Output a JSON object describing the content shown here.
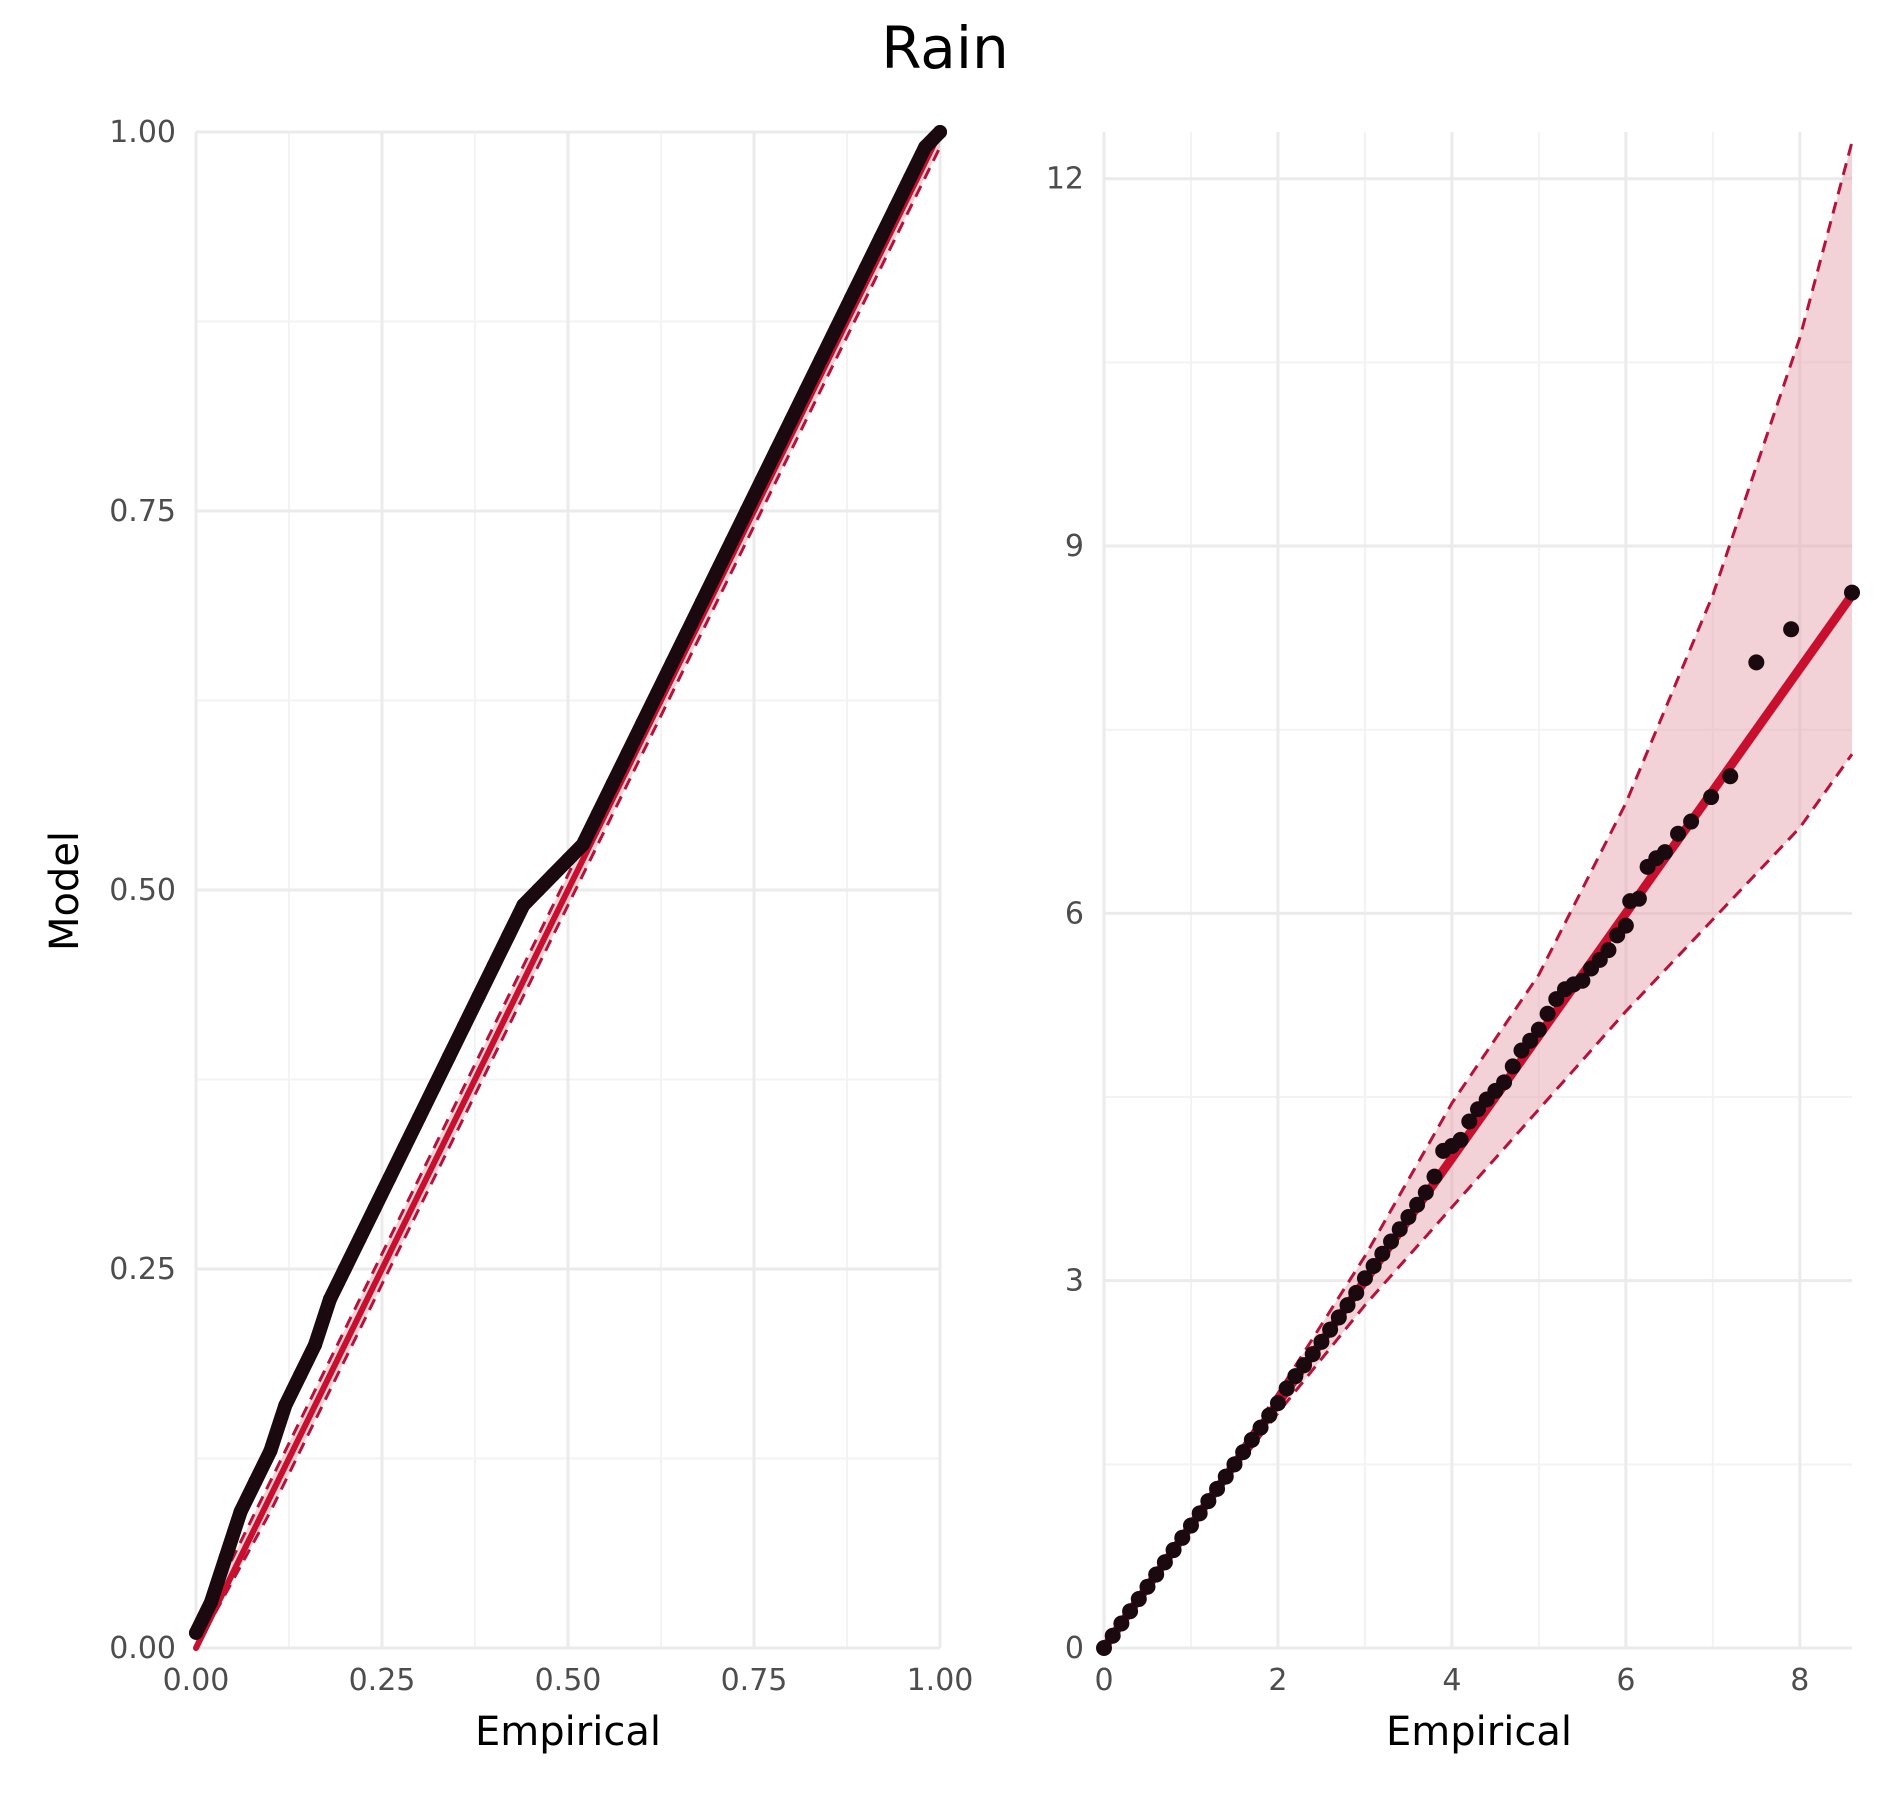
{
  "title": "Rain",
  "colors": {
    "points": "#1a0a0f",
    "reference_line": "#c8102e",
    "band_fill": "#e5a3b0",
    "band_border": "#b5133a",
    "grid_major": "#ebebeb",
    "grid_minor": "#f3f3f3",
    "tick_text": "#4d4d4d"
  },
  "chart_data": [
    {
      "type": "scatter",
      "panel": "left",
      "xlabel": "Empirical",
      "ylabel": "Model",
      "xlim": [
        0,
        1
      ],
      "ylim": [
        0,
        1
      ],
      "x_ticks": [
        "0.00",
        "0.25",
        "0.50",
        "0.75",
        "1.00"
      ],
      "y_ticks": [
        "0.00",
        "0.25",
        "0.50",
        "0.75",
        "1.00"
      ],
      "grid": true,
      "reference_line": [
        [
          0,
          0
        ],
        [
          1,
          1
        ]
      ],
      "band_lower": [
        [
          0,
          0
        ],
        [
          0.1,
          0.09
        ],
        [
          0.2,
          0.19
        ],
        [
          0.3,
          0.29
        ],
        [
          0.4,
          0.39
        ],
        [
          0.5,
          0.49
        ],
        [
          0.6,
          0.59
        ],
        [
          0.7,
          0.69
        ],
        [
          0.8,
          0.79
        ],
        [
          0.9,
          0.89
        ],
        [
          1.0,
          0.99
        ]
      ],
      "band_upper": [
        [
          0,
          0.01
        ],
        [
          0.1,
          0.11
        ],
        [
          0.2,
          0.21
        ],
        [
          0.3,
          0.31
        ],
        [
          0.4,
          0.41
        ],
        [
          0.5,
          0.51
        ],
        [
          0.6,
          0.61
        ],
        [
          0.7,
          0.71
        ],
        [
          0.8,
          0.81
        ],
        [
          0.9,
          0.91
        ],
        [
          1.0,
          1.0
        ]
      ],
      "points": [
        [
          0.0,
          0.01
        ],
        [
          0.02,
          0.03
        ],
        [
          0.04,
          0.06
        ],
        [
          0.06,
          0.09
        ],
        [
          0.08,
          0.11
        ],
        [
          0.1,
          0.13
        ],
        [
          0.12,
          0.16
        ],
        [
          0.14,
          0.18
        ],
        [
          0.16,
          0.2
        ],
        [
          0.18,
          0.23
        ],
        [
          0.2,
          0.25
        ],
        [
          0.22,
          0.27
        ],
        [
          0.24,
          0.29
        ],
        [
          0.26,
          0.31
        ],
        [
          0.28,
          0.33
        ],
        [
          0.3,
          0.35
        ],
        [
          0.32,
          0.37
        ],
        [
          0.34,
          0.39
        ],
        [
          0.36,
          0.41
        ],
        [
          0.38,
          0.43
        ],
        [
          0.4,
          0.45
        ],
        [
          0.42,
          0.47
        ],
        [
          0.44,
          0.49
        ],
        [
          0.46,
          0.5
        ],
        [
          0.48,
          0.51
        ],
        [
          0.5,
          0.52
        ],
        [
          0.52,
          0.53
        ],
        [
          0.54,
          0.55
        ],
        [
          0.56,
          0.57
        ],
        [
          0.58,
          0.59
        ],
        [
          0.6,
          0.61
        ],
        [
          0.62,
          0.63
        ],
        [
          0.64,
          0.65
        ],
        [
          0.66,
          0.67
        ],
        [
          0.68,
          0.69
        ],
        [
          0.7,
          0.71
        ],
        [
          0.72,
          0.73
        ],
        [
          0.74,
          0.75
        ],
        [
          0.76,
          0.77
        ],
        [
          0.78,
          0.79
        ],
        [
          0.8,
          0.81
        ],
        [
          0.82,
          0.83
        ],
        [
          0.84,
          0.85
        ],
        [
          0.86,
          0.87
        ],
        [
          0.88,
          0.89
        ],
        [
          0.9,
          0.91
        ],
        [
          0.92,
          0.93
        ],
        [
          0.94,
          0.95
        ],
        [
          0.96,
          0.97
        ],
        [
          0.98,
          0.99
        ],
        [
          1.0,
          1.0
        ]
      ]
    },
    {
      "type": "scatter",
      "panel": "right",
      "xlabel": "Empirical",
      "ylabel": "",
      "xlim": [
        0,
        8.6
      ],
      "ylim": [
        0,
        12.3
      ],
      "x_ticks": [
        "0",
        "2",
        "4",
        "6",
        "8"
      ],
      "y_ticks": [
        "0",
        "3",
        "6",
        "9",
        "12"
      ],
      "grid": true,
      "reference_line": [
        [
          0,
          0
        ],
        [
          8.6,
          8.6
        ]
      ],
      "band_lower": [
        [
          0,
          0
        ],
        [
          1,
          0.98
        ],
        [
          2,
          1.92
        ],
        [
          3,
          2.8
        ],
        [
          4,
          3.6
        ],
        [
          5,
          4.4
        ],
        [
          6,
          5.2
        ],
        [
          7,
          5.95
        ],
        [
          8,
          6.7
        ],
        [
          8.6,
          7.3
        ]
      ],
      "band_upper": [
        [
          0,
          0
        ],
        [
          1,
          1.02
        ],
        [
          2,
          2.08
        ],
        [
          3,
          3.2
        ],
        [
          4,
          4.45
        ],
        [
          5,
          5.5
        ],
        [
          6,
          6.9
        ],
        [
          7,
          8.6
        ],
        [
          8,
          10.7
        ],
        [
          8.6,
          12.3
        ]
      ],
      "points": [
        [
          0.0,
          0.0
        ],
        [
          0.1,
          0.1
        ],
        [
          0.2,
          0.2
        ],
        [
          0.3,
          0.3
        ],
        [
          0.4,
          0.4
        ],
        [
          0.5,
          0.5
        ],
        [
          0.6,
          0.6
        ],
        [
          0.7,
          0.7
        ],
        [
          0.8,
          0.8
        ],
        [
          0.9,
          0.9
        ],
        [
          1.0,
          1.0
        ],
        [
          1.1,
          1.1
        ],
        [
          1.2,
          1.2
        ],
        [
          1.3,
          1.3
        ],
        [
          1.4,
          1.4
        ],
        [
          1.5,
          1.5
        ],
        [
          1.6,
          1.6
        ],
        [
          1.7,
          1.7
        ],
        [
          1.8,
          1.8
        ],
        [
          1.9,
          1.9
        ],
        [
          2.0,
          2.0
        ],
        [
          2.1,
          2.12
        ],
        [
          2.2,
          2.22
        ],
        [
          2.3,
          2.31
        ],
        [
          2.4,
          2.4
        ],
        [
          2.5,
          2.5
        ],
        [
          2.6,
          2.6
        ],
        [
          2.7,
          2.7
        ],
        [
          2.8,
          2.8
        ],
        [
          2.9,
          2.9
        ],
        [
          3.0,
          3.02
        ],
        [
          3.1,
          3.12
        ],
        [
          3.2,
          3.22
        ],
        [
          3.3,
          3.32
        ],
        [
          3.4,
          3.42
        ],
        [
          3.5,
          3.52
        ],
        [
          3.6,
          3.62
        ],
        [
          3.7,
          3.72
        ],
        [
          3.8,
          3.85
        ],
        [
          3.9,
          4.06
        ],
        [
          4.0,
          4.1
        ],
        [
          4.1,
          4.15
        ],
        [
          4.2,
          4.3
        ],
        [
          4.3,
          4.4
        ],
        [
          4.4,
          4.48
        ],
        [
          4.5,
          4.55
        ],
        [
          4.6,
          4.62
        ],
        [
          4.7,
          4.75
        ],
        [
          4.8,
          4.88
        ],
        [
          4.9,
          4.96
        ],
        [
          5.0,
          5.05
        ],
        [
          5.1,
          5.18
        ],
        [
          5.2,
          5.3
        ],
        [
          5.3,
          5.38
        ],
        [
          5.4,
          5.42
        ],
        [
          5.5,
          5.45
        ],
        [
          5.6,
          5.55
        ],
        [
          5.7,
          5.62
        ],
        [
          5.8,
          5.7
        ],
        [
          5.9,
          5.82
        ],
        [
          6.0,
          5.9
        ],
        [
          6.05,
          6.1
        ],
        [
          6.15,
          6.12
        ],
        [
          6.25,
          6.38
        ],
        [
          6.35,
          6.45
        ],
        [
          6.45,
          6.5
        ],
        [
          6.6,
          6.65
        ],
        [
          6.75,
          6.75
        ],
        [
          6.98,
          6.95
        ],
        [
          7.2,
          7.12
        ],
        [
          7.5,
          8.05
        ],
        [
          7.9,
          8.32
        ],
        [
          8.6,
          8.62
        ]
      ]
    }
  ]
}
